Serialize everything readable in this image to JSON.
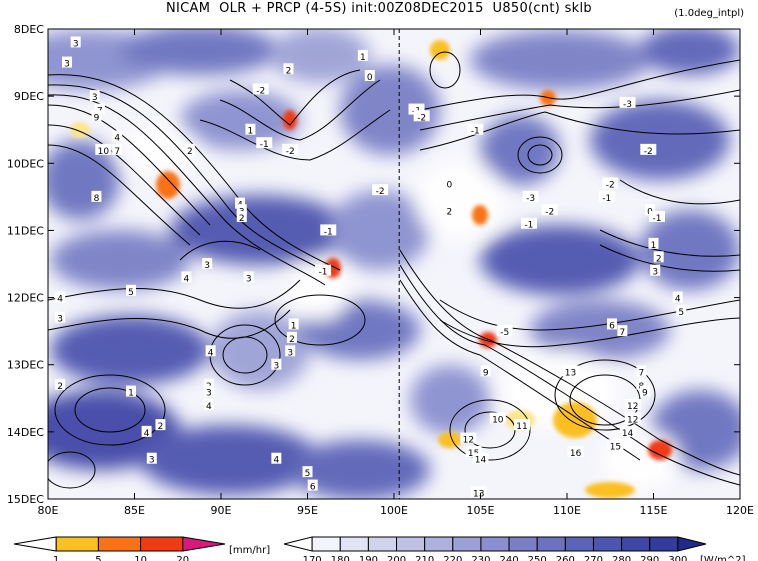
{
  "chart_data": {
    "type": "heatmap",
    "title": "NICAM  OLR + PRCP (4-5S) init:00Z08DEC2015  U850(cnt) sklb",
    "annotation": "(1.0deg_intpl)",
    "x_ticks": [
      "80E",
      "85E",
      "90E",
      "95E",
      "100E",
      "105E",
      "110E",
      "115E",
      "120E"
    ],
    "x_values": [
      80,
      85,
      90,
      95,
      100,
      105,
      110,
      115,
      120
    ],
    "y_ticks": [
      "8DEC",
      "9DEC",
      "10DEC",
      "11DEC",
      "12DEC",
      "13DEC",
      "14DEC",
      "15DEC"
    ],
    "y_values": [
      8,
      9,
      10,
      11,
      12,
      13,
      14,
      15
    ],
    "xlim": [
      80,
      120
    ],
    "ylim": [
      8,
      15
    ],
    "init_marker_lon": 100.3,
    "precip_colorbar": {
      "labels": [
        "1",
        "5",
        "10",
        "20"
      ],
      "unit": "[mm/hr]",
      "colors": [
        "#fde68a",
        "#fbbf24",
        "#f97316",
        "#ef3b16",
        "#d6197a"
      ]
    },
    "olr_colorbar": {
      "labels": [
        "170",
        "180",
        "190",
        "200",
        "210",
        "220",
        "230",
        "240",
        "250",
        "260",
        "270",
        "280",
        "290",
        "300"
      ],
      "unit": "[W/m^2]",
      "colors": [
        "#ffffff",
        "#f3f3fa",
        "#e2e3f3",
        "#d0d3ec",
        "#bfc2e5",
        "#adb1dd",
        "#9ca1d6",
        "#8a90cf",
        "#7a80c6",
        "#6b72bf",
        "#5c64b7",
        "#4d55af",
        "#3f47a6",
        "#333c9c"
      ]
    },
    "contour_labels": [
      {
        "text": "3",
        "lon": 81.6,
        "lat": 8.2
      },
      {
        "text": "3",
        "lon": 81.1,
        "lat": 8.5
      },
      {
        "text": "2",
        "lon": 93.9,
        "lat": 8.6
      },
      {
        "text": "1",
        "lon": 98.2,
        "lat": 8.4
      },
      {
        "text": "0",
        "lon": 98.6,
        "lat": 8.7
      },
      {
        "text": "3",
        "lon": 82.7,
        "lat": 9.0
      },
      {
        "text": "7",
        "lon": 83.0,
        "lat": 9.2
      },
      {
        "text": "9",
        "lon": 82.8,
        "lat": 9.3
      },
      {
        "text": "10",
        "lon": 83.2,
        "lat": 9.8
      },
      {
        "text": "4",
        "lon": 84.0,
        "lat": 9.6
      },
      {
        "text": "7",
        "lon": 84.0,
        "lat": 9.8
      },
      {
        "text": "-2",
        "lon": 92.3,
        "lat": 8.9
      },
      {
        "text": "-1",
        "lon": 101.3,
        "lat": 9.2
      },
      {
        "text": "-2",
        "lon": 101.6,
        "lat": 9.3
      },
      {
        "text": "-1",
        "lon": 104.7,
        "lat": 9.5
      },
      {
        "text": "1",
        "lon": 91.7,
        "lat": 9.5
      },
      {
        "text": "-1",
        "lon": 92.5,
        "lat": 9.7
      },
      {
        "text": "-2",
        "lon": 94.0,
        "lat": 9.8
      },
      {
        "text": "2",
        "lon": 88.2,
        "lat": 9.8
      },
      {
        "text": "-2",
        "lon": 99.2,
        "lat": 10.4
      },
      {
        "text": "8",
        "lon": 82.8,
        "lat": 10.5
      },
      {
        "text": "4",
        "lon": 91.1,
        "lat": 10.6
      },
      {
        "text": "3",
        "lon": 91.2,
        "lat": 10.7
      },
      {
        "text": "2",
        "lon": 91.2,
        "lat": 10.8
      },
      {
        "text": "-1",
        "lon": 96.2,
        "lat": 11.0
      },
      {
        "text": "3",
        "lon": 91.6,
        "lat": 11.7
      },
      {
        "text": "3",
        "lon": 89.2,
        "lat": 11.5
      },
      {
        "text": "4",
        "lon": 88.0,
        "lat": 11.7
      },
      {
        "text": "5",
        "lon": 84.8,
        "lat": 11.9
      },
      {
        "text": "4",
        "lon": 80.7,
        "lat": 12.0
      },
      {
        "text": "3",
        "lon": 80.7,
        "lat": 12.3
      },
      {
        "text": "-1",
        "lon": 95.9,
        "lat": 11.6
      },
      {
        "text": "-3",
        "lon": 107.9,
        "lat": 10.5
      },
      {
        "text": "-2",
        "lon": 109.0,
        "lat": 10.7
      },
      {
        "text": "-1",
        "lon": 107.8,
        "lat": 10.9
      },
      {
        "text": "-2",
        "lon": 112.5,
        "lat": 10.3
      },
      {
        "text": "-1",
        "lon": 112.3,
        "lat": 10.5
      },
      {
        "text": "-3",
        "lon": 113.5,
        "lat": 9.1
      },
      {
        "text": "-2",
        "lon": 114.7,
        "lat": 9.8
      },
      {
        "text": "0",
        "lon": 114.8,
        "lat": 10.7
      },
      {
        "text": "-1",
        "lon": 115.2,
        "lat": 10.8
      },
      {
        "text": "1",
        "lon": 115.0,
        "lat": 11.2
      },
      {
        "text": "2",
        "lon": 115.3,
        "lat": 11.4
      },
      {
        "text": "3",
        "lon": 115.1,
        "lat": 11.6
      },
      {
        "text": "4",
        "lon": 116.4,
        "lat": 12.0
      },
      {
        "text": "5",
        "lon": 116.6,
        "lat": 12.2
      },
      {
        "text": "6",
        "lon": 112.6,
        "lat": 12.4
      },
      {
        "text": "7",
        "lon": 113.2,
        "lat": 12.5
      },
      {
        "text": "1",
        "lon": 94.2,
        "lat": 12.4
      },
      {
        "text": "2",
        "lon": 94.1,
        "lat": 12.6
      },
      {
        "text": "3",
        "lon": 94.0,
        "lat": 12.8
      },
      {
        "text": "3",
        "lon": 93.2,
        "lat": 13.0
      },
      {
        "text": "4",
        "lon": 89.4,
        "lat": 12.8
      },
      {
        "text": "2",
        "lon": 89.3,
        "lat": 13.3
      },
      {
        "text": "3",
        "lon": 89.3,
        "lat": 13.4
      },
      {
        "text": "4",
        "lon": 89.3,
        "lat": 13.6
      },
      {
        "text": "2",
        "lon": 80.7,
        "lat": 13.3
      },
      {
        "text": "1",
        "lon": 84.8,
        "lat": 13.4
      },
      {
        "text": "2",
        "lon": 86.5,
        "lat": 13.9
      },
      {
        "text": "4",
        "lon": 85.7,
        "lat": 14.0
      },
      {
        "text": "3",
        "lon": 86.0,
        "lat": 14.4
      },
      {
        "text": "4",
        "lon": 93.2,
        "lat": 14.4
      },
      {
        "text": "5",
        "lon": 95.0,
        "lat": 14.6
      },
      {
        "text": "6",
        "lon": 95.3,
        "lat": 14.8
      },
      {
        "text": "9",
        "lon": 105.3,
        "lat": 13.1
      },
      {
        "text": "-5",
        "lon": 106.4,
        "lat": 12.5
      },
      {
        "text": "0",
        "lon": 103.2,
        "lat": 10.3
      },
      {
        "text": "2",
        "lon": 103.2,
        "lat": 10.7
      },
      {
        "text": "13",
        "lon": 110.2,
        "lat": 13.1
      },
      {
        "text": "7",
        "lon": 114.3,
        "lat": 13.1
      },
      {
        "text": "8",
        "lon": 114.3,
        "lat": 13.3
      },
      {
        "text": "9",
        "lon": 114.5,
        "lat": 13.4
      },
      {
        "text": "12",
        "lon": 113.8,
        "lat": 13.6
      },
      {
        "text": "12",
        "lon": 113.8,
        "lat": 13.8
      },
      {
        "text": "10",
        "lon": 106.0,
        "lat": 13.8
      },
      {
        "text": "11",
        "lon": 107.4,
        "lat": 13.9
      },
      {
        "text": "12",
        "lon": 104.3,
        "lat": 14.1
      },
      {
        "text": "15",
        "lon": 104.6,
        "lat": 14.3
      },
      {
        "text": "14",
        "lon": 105.0,
        "lat": 14.4
      },
      {
        "text": "16",
        "lon": 110.5,
        "lat": 14.3
      },
      {
        "text": "15",
        "lon": 112.8,
        "lat": 14.2
      },
      {
        "text": "14",
        "lon": 113.5,
        "lat": 14.0
      },
      {
        "text": "13",
        "lon": 104.9,
        "lat": 14.9
      }
    ]
  }
}
